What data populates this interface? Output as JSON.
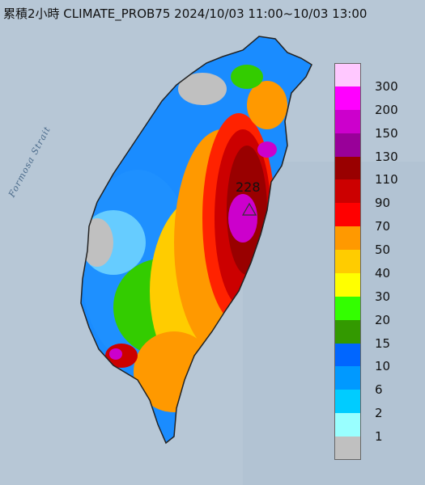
{
  "title": "累積2小時 CLIMATE_PROB75 2024/10/03 11:00~10/03 13:00",
  "strait_label": "Formosa Strait",
  "peak_value": "228",
  "legend": [
    {
      "label": "300",
      "color": "#ffc8ff"
    },
    {
      "label": "200",
      "color": "#ff00ff"
    },
    {
      "label": "150",
      "color": "#cc00cc"
    },
    {
      "label": "130",
      "color": "#990099"
    },
    {
      "label": "110",
      "color": "#990000"
    },
    {
      "label": "90",
      "color": "#cc0000"
    },
    {
      "label": "70",
      "color": "#ff0000"
    },
    {
      "label": "50",
      "color": "#ff9900"
    },
    {
      "label": "40",
      "color": "#ffcc00"
    },
    {
      "label": "30",
      "color": "#ffff00"
    },
    {
      "label": "20",
      "color": "#33ff00"
    },
    {
      "label": "15",
      "color": "#339900"
    },
    {
      "label": "10",
      "color": "#0066ff"
    },
    {
      "label": "6",
      "color": "#0099ff"
    },
    {
      "label": "2",
      "color": "#00ccff"
    },
    {
      "label": "1",
      "color": "#99ffff"
    },
    {
      "label": "",
      "color": "#c0c0c0"
    }
  ]
}
